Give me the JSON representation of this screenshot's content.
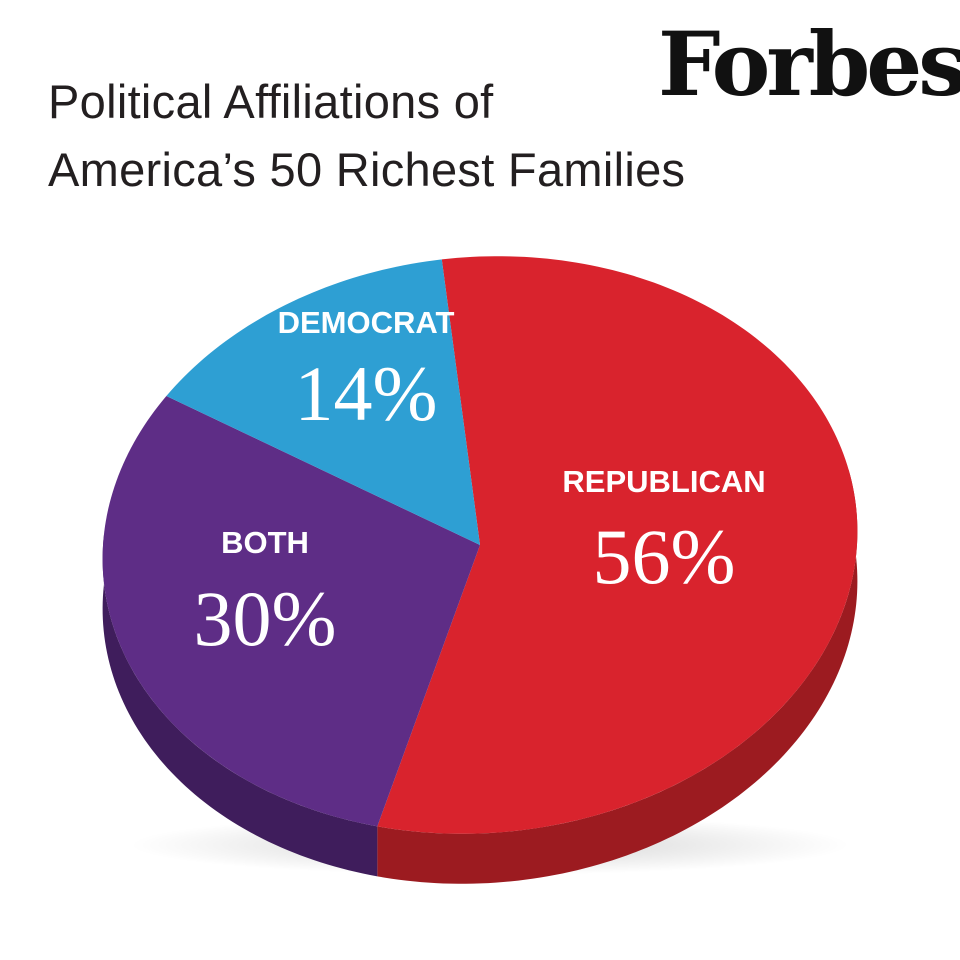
{
  "brand": {
    "logo_text": "Forbes"
  },
  "chart_data": {
    "type": "pie",
    "title_lines": [
      "Political Affiliations of",
      "America’s 50 Richest Families"
    ],
    "slices": [
      {
        "label": "REPUBLICAN",
        "value": 56,
        "value_label": "56%",
        "color": "#d9232d",
        "side_color": "#9c1b20"
      },
      {
        "label": "BOTH",
        "value": 30,
        "value_label": "30%",
        "color": "#5e2d86",
        "side_color": "#3f1d5c"
      },
      {
        "label": "DEMOCRAT",
        "value": 14,
        "value_label": "14%",
        "color": "#2e9fd3",
        "side_color": "#1f76a0"
      }
    ]
  }
}
